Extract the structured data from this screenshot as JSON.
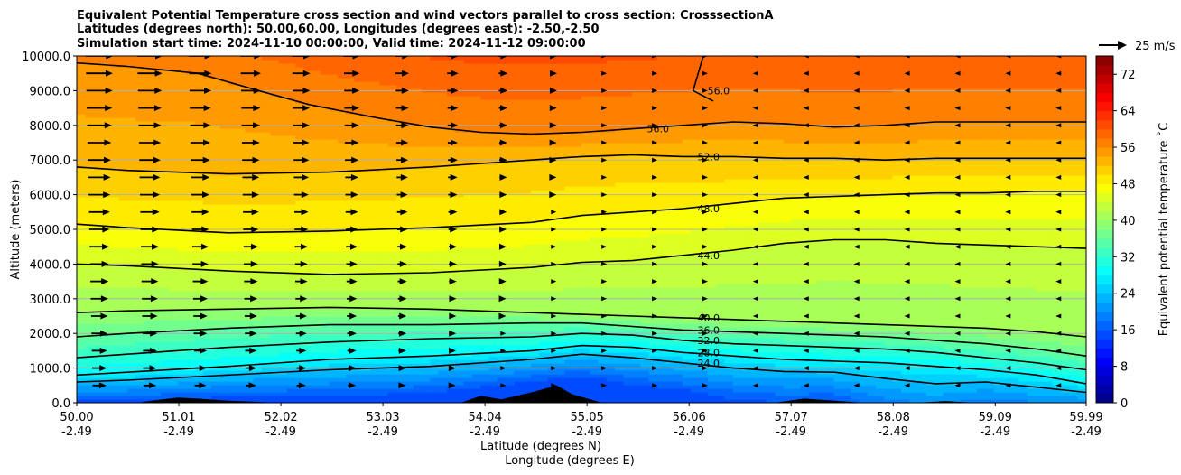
{
  "chart_data": {
    "type": "contour",
    "title_lines": [
      "Equivalent Potential Temperature cross section and wind vectors parallel to cross section: CrosssectionA",
      "Latitudes (degrees north): 50.00,60.00, Longitudes (degrees east): -2.50,-2.50",
      "Simulation start time: 2024-11-10 00:00:00, Valid time: 2024-11-12 09:00:00"
    ],
    "ylabel": "Altitude (meters)",
    "xlabel_primary": "Latitude (degrees N)",
    "xlabel_secondary": "Longitude (degrees E)",
    "xlim": [
      50.0,
      59.99
    ],
    "ylim": [
      0,
      10000
    ],
    "grid": "horizontal",
    "x_ticks": [
      {
        "lat": 50.0,
        "lat_label": "50.00",
        "lon_label": "-2.49"
      },
      {
        "lat": 51.01,
        "lat_label": "51.01",
        "lon_label": "-2.49"
      },
      {
        "lat": 52.02,
        "lat_label": "52.02",
        "lon_label": "-2.49"
      },
      {
        "lat": 53.03,
        "lat_label": "53.03",
        "lon_label": "-2.49"
      },
      {
        "lat": 54.04,
        "lat_label": "54.04",
        "lon_label": "-2.49"
      },
      {
        "lat": 55.05,
        "lat_label": "55.05",
        "lon_label": "-2.49"
      },
      {
        "lat": 56.06,
        "lat_label": "56.06",
        "lon_label": "-2.49"
      },
      {
        "lat": 57.07,
        "lat_label": "57.07",
        "lon_label": "-2.49"
      },
      {
        "lat": 58.08,
        "lat_label": "58.08",
        "lon_label": "-2.49"
      },
      {
        "lat": 59.09,
        "lat_label": "59.09",
        "lon_label": "-2.49"
      },
      {
        "lat": 59.99,
        "lat_label": "59.99",
        "lon_label": "-2.49"
      }
    ],
    "y_ticks": [
      {
        "value": 0,
        "label": "0.0"
      },
      {
        "value": 1000,
        "label": "1000.0"
      },
      {
        "value": 2000,
        "label": "2000.0"
      },
      {
        "value": 3000,
        "label": "3000.0"
      },
      {
        "value": 4000,
        "label": "4000.0"
      },
      {
        "value": 5000,
        "label": "5000.0"
      },
      {
        "value": 6000,
        "label": "6000.0"
      },
      {
        "value": 7000,
        "label": "7000.0"
      },
      {
        "value": 8000,
        "label": "8000.0"
      },
      {
        "value": 9000,
        "label": "9000.0"
      },
      {
        "value": 10000,
        "label": "10000.0"
      }
    ],
    "colorbar": {
      "label": "Equivalent potential temperature ˚C",
      "min": 0,
      "max": 76,
      "levels_step": 2,
      "tick_values": [
        0,
        8,
        16,
        24,
        32,
        40,
        48,
        56,
        64,
        72
      ],
      "tick_labels": [
        "0",
        "8",
        "16",
        "24",
        "32",
        "40",
        "48",
        "56",
        "64",
        "72"
      ]
    },
    "wind_key": {
      "label": "25 m/s",
      "speed": 25
    },
    "contours": [
      {
        "level": 24,
        "label": "24.0",
        "points": [
          [
            50.0,
            600
          ],
          [
            50.5,
            650
          ],
          [
            51.5,
            800
          ],
          [
            52.5,
            950
          ],
          [
            53.5,
            1050
          ],
          [
            54.5,
            1250
          ],
          [
            55.0,
            1400
          ],
          [
            55.5,
            1300
          ],
          [
            56.0,
            1150
          ],
          [
            56.5,
            1000
          ],
          [
            57.0,
            900
          ],
          [
            57.5,
            880
          ],
          [
            58.0,
            700
          ],
          [
            58.5,
            550
          ],
          [
            59.0,
            600
          ],
          [
            59.5,
            450
          ],
          [
            59.99,
            300
          ]
        ]
      },
      {
        "level": 28,
        "label": "28.0",
        "points": [
          [
            50.0,
            800
          ],
          [
            50.5,
            880
          ],
          [
            51.5,
            1050
          ],
          [
            52.5,
            1250
          ],
          [
            53.5,
            1350
          ],
          [
            54.5,
            1500
          ],
          [
            55.0,
            1650
          ],
          [
            55.5,
            1600
          ],
          [
            56.0,
            1450
          ],
          [
            56.5,
            1350
          ],
          [
            57.0,
            1250
          ],
          [
            57.5,
            1200
          ],
          [
            58.0,
            1150
          ],
          [
            58.5,
            1050
          ],
          [
            59.0,
            950
          ],
          [
            59.5,
            800
          ],
          [
            59.99,
            550
          ]
        ]
      },
      {
        "level": 32,
        "label": "32.0",
        "points": [
          [
            50.0,
            1300
          ],
          [
            50.5,
            1400
          ],
          [
            51.5,
            1600
          ],
          [
            52.5,
            1750
          ],
          [
            53.5,
            1850
          ],
          [
            54.5,
            1900
          ],
          [
            55.0,
            2000
          ],
          [
            55.5,
            1950
          ],
          [
            56.0,
            1800
          ],
          [
            56.5,
            1700
          ],
          [
            57.0,
            1650
          ],
          [
            57.5,
            1600
          ],
          [
            58.0,
            1550
          ],
          [
            58.5,
            1450
          ],
          [
            59.0,
            1300
          ],
          [
            59.5,
            1150
          ],
          [
            59.99,
            950
          ]
        ]
      },
      {
        "level": 36,
        "label": "36.0",
        "points": [
          [
            50.0,
            1900
          ],
          [
            50.5,
            2000
          ],
          [
            51.5,
            2150
          ],
          [
            52.5,
            2250
          ],
          [
            53.5,
            2250
          ],
          [
            54.5,
            2300
          ],
          [
            55.0,
            2300
          ],
          [
            55.5,
            2200
          ],
          [
            56.0,
            2100
          ],
          [
            56.5,
            2050
          ],
          [
            57.0,
            2000
          ],
          [
            57.5,
            1950
          ],
          [
            58.0,
            1900
          ],
          [
            58.5,
            1800
          ],
          [
            59.0,
            1700
          ],
          [
            59.5,
            1550
          ],
          [
            59.99,
            1350
          ]
        ]
      },
      {
        "level": 40,
        "label": "40.0",
        "points": [
          [
            50.0,
            2600
          ],
          [
            50.5,
            2650
          ],
          [
            51.5,
            2700
          ],
          [
            52.5,
            2750
          ],
          [
            53.5,
            2700
          ],
          [
            54.5,
            2600
          ],
          [
            55.0,
            2550
          ],
          [
            55.5,
            2500
          ],
          [
            56.0,
            2450
          ],
          [
            56.5,
            2400
          ],
          [
            57.0,
            2350
          ],
          [
            57.5,
            2300
          ],
          [
            58.0,
            2250
          ],
          [
            58.5,
            2200
          ],
          [
            59.0,
            2150
          ],
          [
            59.5,
            2050
          ],
          [
            59.99,
            1900
          ]
        ]
      },
      {
        "level": 44,
        "label": "44.0",
        "points": [
          [
            50.0,
            4000
          ],
          [
            50.5,
            3950
          ],
          [
            51.5,
            3800
          ],
          [
            52.5,
            3700
          ],
          [
            53.5,
            3750
          ],
          [
            54.5,
            3900
          ],
          [
            55.0,
            4050
          ],
          [
            55.5,
            4100
          ],
          [
            56.0,
            4250
          ],
          [
            56.5,
            4400
          ],
          [
            57.0,
            4600
          ],
          [
            57.5,
            4700
          ],
          [
            58.0,
            4700
          ],
          [
            58.5,
            4600
          ],
          [
            59.0,
            4550
          ],
          [
            59.5,
            4500
          ],
          [
            59.99,
            4450
          ]
        ]
      },
      {
        "level": 48,
        "label": "48.0",
        "points": [
          [
            50.0,
            5150
          ],
          [
            50.5,
            5050
          ],
          [
            51.5,
            4900
          ],
          [
            52.5,
            4950
          ],
          [
            53.5,
            5050
          ],
          [
            54.5,
            5200
          ],
          [
            55.0,
            5400
          ],
          [
            55.5,
            5500
          ],
          [
            56.0,
            5600
          ],
          [
            56.5,
            5750
          ],
          [
            57.0,
            5900
          ],
          [
            57.5,
            5950
          ],
          [
            58.0,
            6000
          ],
          [
            58.5,
            6050
          ],
          [
            59.0,
            6050
          ],
          [
            59.5,
            6100
          ],
          [
            59.99,
            6100
          ]
        ]
      },
      {
        "level": 52,
        "label": "52.0",
        "points": [
          [
            50.0,
            6800
          ],
          [
            50.5,
            6700
          ],
          [
            51.5,
            6600
          ],
          [
            52.5,
            6650
          ],
          [
            53.5,
            6800
          ],
          [
            54.5,
            7000
          ],
          [
            55.0,
            7100
          ],
          [
            55.5,
            7150
          ],
          [
            56.0,
            7100
          ],
          [
            56.5,
            7100
          ],
          [
            57.0,
            7050
          ],
          [
            57.5,
            7050
          ],
          [
            58.0,
            7000
          ],
          [
            58.5,
            7050
          ],
          [
            59.0,
            7050
          ],
          [
            59.5,
            7050
          ],
          [
            59.99,
            7050
          ]
        ]
      },
      {
        "level": 56,
        "label": "56.0",
        "points": [
          [
            50.0,
            9800
          ],
          [
            50.5,
            9700
          ],
          [
            51.2,
            9500
          ],
          [
            51.8,
            9000
          ],
          [
            52.3,
            8600
          ],
          [
            53.0,
            8200
          ],
          [
            53.5,
            7950
          ],
          [
            54.0,
            7800
          ],
          [
            54.5,
            7750
          ],
          [
            55.0,
            7800
          ],
          [
            55.5,
            7900
          ],
          [
            56.0,
            8000
          ],
          [
            56.5,
            8100
          ],
          [
            57.0,
            8050
          ],
          [
            57.5,
            7950
          ],
          [
            58.0,
            8000
          ],
          [
            58.5,
            8100
          ],
          [
            59.0,
            8100
          ],
          [
            59.5,
            8100
          ],
          [
            59.99,
            8100
          ]
        ]
      },
      {
        "level": 56,
        "label": "56.0",
        "points": [
          [
            56.2,
            10000
          ],
          [
            56.15,
            9500
          ],
          [
            56.1,
            9000
          ],
          [
            56.3,
            8700
          ]
        ]
      }
    ],
    "wind_vectors_note": "winds parallel to section; westerly components in upper-left, near calm/weak in centre, weak reversed arrows at right"
  }
}
